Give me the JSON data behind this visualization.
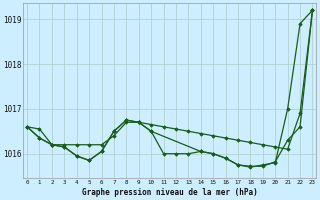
{
  "title": "Graphe pression niveau de la mer (hPa)",
  "background_color": "#cceeff",
  "grid_color": "#aacccc",
  "line_color": "#1a5c1a",
  "marker_color": "#1a5c1a",
  "xlim": [
    -0.3,
    23.3
  ],
  "ylim": [
    1015.45,
    1019.35
  ],
  "yticks": [
    1016,
    1017,
    1018,
    1019
  ],
  "ytick_labels": [
    "1016",
    "1017",
    "1018",
    "1019"
  ],
  "xtick_labels": [
    "0",
    "1",
    "2",
    "3",
    "4",
    "5",
    "6",
    "7",
    "8",
    "9",
    "10",
    "11",
    "12",
    "13",
    "14",
    "15",
    "16",
    "17",
    "18",
    "19",
    "20",
    "21",
    "22",
    "23"
  ],
  "series1_x": [
    0,
    1,
    2,
    3,
    4,
    5,
    6,
    7,
    8,
    9,
    10,
    11,
    12,
    13,
    14,
    15,
    16,
    17,
    18,
    19,
    20,
    21,
    22,
    23
  ],
  "series1_y": [
    1016.6,
    1016.55,
    1016.2,
    1016.2,
    1016.2,
    1016.2,
    1016.2,
    1016.4,
    1016.7,
    1016.7,
    1016.65,
    1016.6,
    1016.55,
    1016.5,
    1016.45,
    1016.4,
    1016.35,
    1016.3,
    1016.25,
    1016.2,
    1016.15,
    1016.1,
    1016.9,
    1019.2
  ],
  "series2_x": [
    0,
    1,
    2,
    3,
    4,
    5,
    6,
    7,
    8,
    9,
    10,
    11,
    12,
    13,
    14,
    15,
    16,
    17,
    18,
    19,
    20,
    21,
    22,
    23
  ],
  "series2_y": [
    1016.6,
    1016.35,
    1016.2,
    1016.15,
    1015.95,
    1015.85,
    1016.05,
    1016.5,
    1016.75,
    1016.7,
    1016.5,
    1016.0,
    1016.0,
    1016.0,
    1016.05,
    1016.0,
    1015.9,
    1015.75,
    1015.7,
    1015.75,
    1015.8,
    1017.0,
    1018.9,
    1019.2
  ],
  "series3_x": [
    0,
    1,
    2,
    3,
    4,
    5,
    6,
    7,
    8,
    9,
    10,
    14,
    15,
    16,
    17,
    18,
    19,
    20,
    21,
    22,
    23
  ],
  "series3_y": [
    1016.6,
    1016.35,
    1016.2,
    1016.15,
    1015.95,
    1015.85,
    1016.05,
    1016.5,
    1016.75,
    1016.7,
    1016.5,
    1016.05,
    1016.0,
    1015.9,
    1015.75,
    1015.72,
    1015.72,
    1015.82,
    1016.3,
    1016.6,
    1019.2
  ]
}
